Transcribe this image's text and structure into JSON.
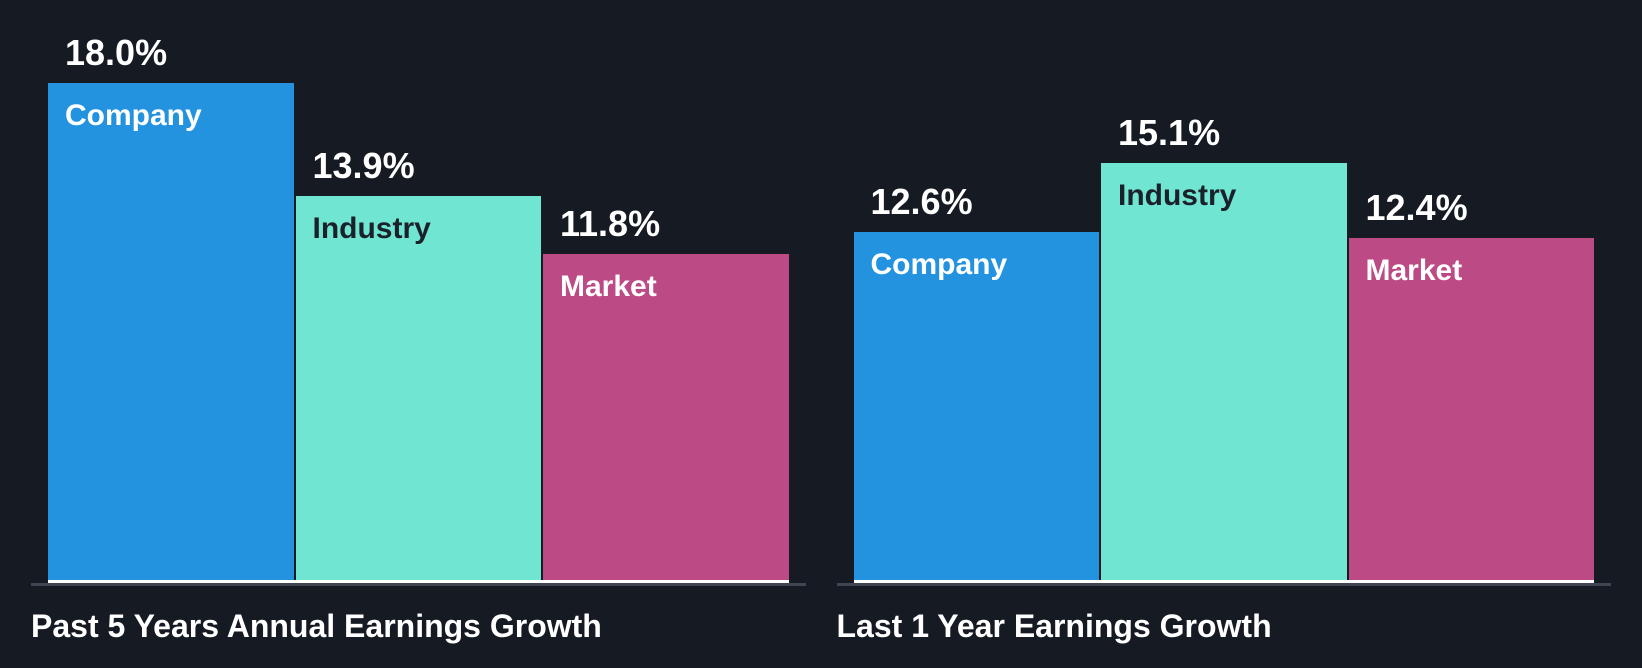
{
  "colors": {
    "background": "#151a23",
    "company_bar": "#2493df",
    "industry_bar": "#70e5d2",
    "market_bar": "#bc4a84",
    "axis_line": "#3f4652",
    "baseline_highlight": "#ffffff",
    "light_label": "#ffffff",
    "dark_label": "#1b212b"
  },
  "chart_data": [
    {
      "type": "bar",
      "title": "Past 5 Years Annual Earnings Growth",
      "categories": [
        "Company",
        "Industry",
        "Market"
      ],
      "values": [
        18.0,
        13.9,
        11.8
      ],
      "value_labels": [
        "18.0%",
        "13.9%",
        "11.8%"
      ],
      "unit": "%",
      "bar_colors": [
        "#2493df",
        "#70e5d2",
        "#bc4a84"
      ],
      "label_colors": [
        "#ffffff",
        "#1b212b",
        "#ffffff"
      ],
      "ylim": [
        0,
        21
      ],
      "grid": false,
      "legend": "none"
    },
    {
      "type": "bar",
      "title": "Last 1 Year Earnings Growth",
      "categories": [
        "Company",
        "Industry",
        "Market"
      ],
      "values": [
        12.6,
        15.1,
        12.4
      ],
      "value_labels": [
        "12.6%",
        "15.1%",
        "12.4%"
      ],
      "unit": "%",
      "bar_colors": [
        "#2493df",
        "#70e5d2",
        "#bc4a84"
      ],
      "label_colors": [
        "#ffffff",
        "#1b212b",
        "#ffffff"
      ],
      "ylim": [
        0,
        21
      ],
      "grid": false,
      "legend": "none"
    }
  ]
}
